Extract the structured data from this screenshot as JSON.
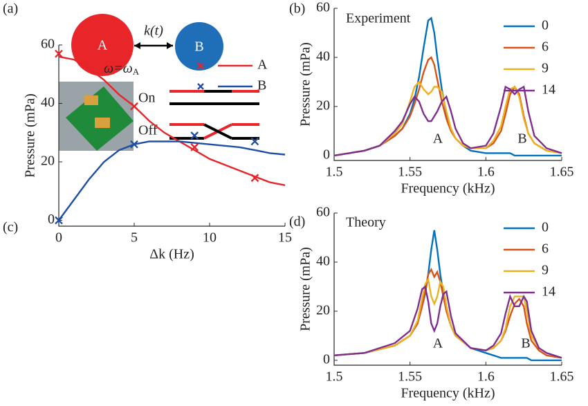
{
  "diagram": {
    "panel_label": "(a)",
    "nodes": [
      {
        "label": "A"
      },
      {
        "label": "B"
      }
    ],
    "coupling": "k(t)",
    "states": [
      "On",
      "Off"
    ]
  },
  "chart_data": [
    {
      "type": "line",
      "panel_label": "(b)",
      "title": "Experiment",
      "x_label": "Frequency (kHz)",
      "y_label": "Pressure (mPa)",
      "region_labels": [
        "A",
        "B"
      ],
      "xlim": [
        1.5,
        1.65
      ],
      "ylim": [
        -2,
        60
      ],
      "xticks": [
        1.5,
        1.55,
        1.6,
        1.65
      ],
      "yticks": [
        0,
        20,
        40,
        60
      ],
      "legend": "upper right",
      "x": [
        1.5,
        1.51,
        1.52,
        1.53,
        1.54,
        1.545,
        1.55,
        1.553,
        1.556,
        1.559,
        1.562,
        1.564,
        1.566,
        1.568,
        1.571,
        1.574,
        1.577,
        1.58,
        1.585,
        1.59,
        1.6,
        1.605,
        1.61,
        1.613,
        1.616,
        1.619,
        1.622,
        1.625,
        1.628,
        1.632,
        1.64,
        1.65
      ],
      "series": [
        {
          "name": "0",
          "color": "#0072bd",
          "values": [
            0,
            1,
            2,
            4,
            8,
            11,
            17,
            23,
            32,
            44,
            55,
            56,
            50,
            40,
            27,
            17,
            11,
            7,
            4,
            2,
            1,
            1,
            1,
            1,
            1,
            0,
            0,
            0,
            0,
            0,
            0,
            0
          ]
        },
        {
          "name": "6",
          "color": "#d95319",
          "values": [
            0,
            1,
            2,
            4,
            8,
            11,
            16,
            21,
            27,
            34,
            39,
            40,
            37,
            31,
            22,
            15,
            10,
            7,
            4,
            3,
            3,
            5,
            10,
            17,
            25,
            28,
            25,
            16,
            9,
            5,
            2,
            1
          ]
        },
        {
          "name": "9",
          "color": "#edb120",
          "values": [
            0,
            1,
            2,
            4,
            9,
            13,
            22,
            28,
            30,
            27,
            25,
            26,
            28,
            28,
            26,
            18,
            11,
            7,
            4,
            3,
            3,
            6,
            12,
            20,
            27,
            28,
            24,
            15,
            9,
            5,
            2,
            1
          ]
        },
        {
          "name": "14",
          "color": "#7e2f8e",
          "values": [
            0,
            1,
            2,
            4,
            10,
            14,
            21,
            24,
            22,
            17,
            14,
            14,
            16,
            18,
            22,
            24,
            18,
            11,
            5,
            3,
            4,
            9,
            20,
            28,
            27,
            25,
            27,
            28,
            18,
            8,
            3,
            1
          ]
        }
      ]
    },
    {
      "type": "line",
      "panel_label": "(c)",
      "x_label": "Δk (Hz)",
      "y_label": "Pressure (mPa)",
      "annotation": {
        "text": "ω=ω",
        "subscript": "A"
      },
      "xlim": [
        0,
        15
      ],
      "ylim": [
        -2,
        60
      ],
      "xticks": [
        0,
        5,
        10,
        15
      ],
      "yticks": [
        0,
        20,
        40,
        60
      ],
      "legend": "upper right",
      "x": [
        0,
        1,
        2,
        3,
        4,
        5,
        6,
        7,
        8,
        9,
        10,
        11,
        12,
        13,
        14,
        15
      ],
      "series": [
        {
          "name": "A",
          "color": "#e3262a",
          "values": [
            56,
            55,
            52,
            48,
            43,
            39,
            34,
            30,
            27,
            24,
            21,
            19,
            17,
            15,
            13,
            12
          ],
          "marker_x": [
            0,
            5,
            9,
            13
          ],
          "marker_values": [
            57,
            39,
            25,
            14.5
          ]
        },
        {
          "name": "B",
          "color": "#1f4ea6",
          "values": [
            0,
            7,
            14,
            20,
            24,
            26,
            27,
            27,
            27,
            26.5,
            26,
            25.5,
            25,
            24,
            23,
            22.5
          ],
          "marker_x": [
            0,
            5,
            9,
            13
          ],
          "marker_values": [
            0,
            26,
            29,
            27
          ]
        }
      ]
    },
    {
      "type": "line",
      "panel_label": "(d)",
      "title": "Theory",
      "x_label": "Frequency (kHz)",
      "y_label": "Pressure (mPa)",
      "region_labels": [
        "A",
        "B"
      ],
      "xlim": [
        1.5,
        1.65
      ],
      "ylim": [
        -2,
        60
      ],
      "xticks": [
        1.5,
        1.55,
        1.6,
        1.65
      ],
      "yticks": [
        0,
        20,
        40,
        60
      ],
      "legend": "upper right",
      "x": [
        1.5,
        1.52,
        1.54,
        1.55,
        1.555,
        1.558,
        1.56,
        1.562,
        1.564,
        1.566,
        1.568,
        1.57,
        1.572,
        1.574,
        1.577,
        1.58,
        1.59,
        1.6,
        1.605,
        1.61,
        1.613,
        1.616,
        1.619,
        1.622,
        1.625,
        1.627,
        1.63,
        1.635,
        1.64,
        1.65
      ],
      "series": [
        {
          "name": "0",
          "color": "#0072bd",
          "values": [
            2,
            3,
            6,
            10,
            15,
            22,
            27,
            35,
            45,
            53,
            45,
            35,
            27,
            21,
            14,
            10,
            5,
            3,
            2,
            1,
            1,
            1,
            1,
            1,
            1,
            1,
            0,
            0,
            0,
            0
          ]
        },
        {
          "name": "6",
          "color": "#d95319",
          "values": [
            2,
            3,
            6,
            10,
            15,
            22,
            28,
            35,
            37,
            34,
            36,
            32,
            26,
            20,
            14,
            10,
            5,
            4,
            5,
            8,
            12,
            18,
            23,
            25,
            22,
            15,
            8,
            4,
            2,
            1
          ]
        },
        {
          "name": "9",
          "color": "#edb120",
          "values": [
            2,
            3,
            6,
            10,
            16,
            25,
            31,
            33,
            26,
            23,
            26,
            32,
            30,
            22,
            14,
            10,
            5,
            4,
            5,
            8,
            13,
            22,
            26,
            26,
            26,
            20,
            10,
            5,
            3,
            1
          ]
        },
        {
          "name": "14",
          "color": "#7e2f8e",
          "values": [
            2,
            3,
            7,
            12,
            21,
            29,
            30,
            24,
            15,
            12,
            15,
            22,
            27,
            28,
            18,
            11,
            5,
            4,
            6,
            11,
            19,
            26,
            22,
            22,
            26,
            24,
            12,
            5,
            3,
            1
          ]
        }
      ]
    }
  ]
}
